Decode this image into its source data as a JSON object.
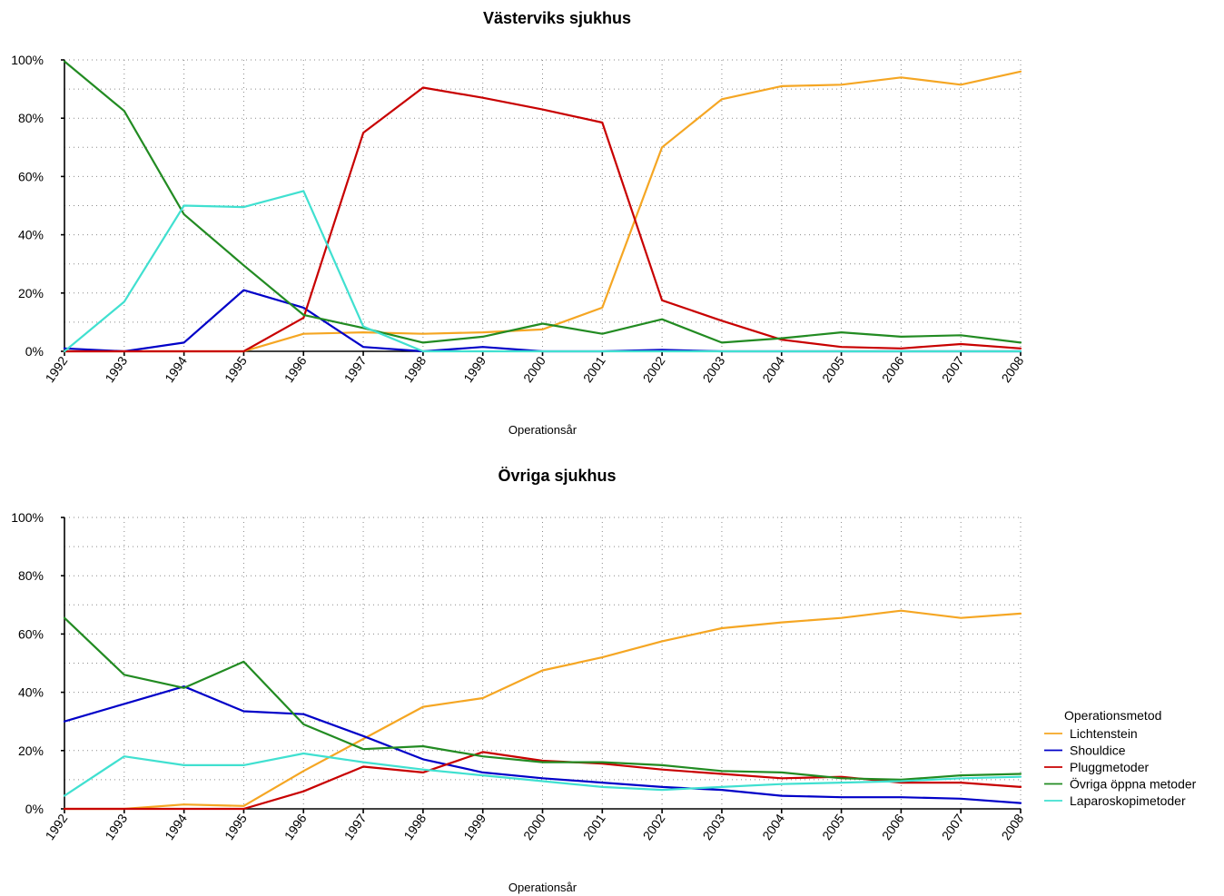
{
  "chart_data": [
    {
      "type": "line",
      "title": "Västerviks sjukhus",
      "xlabel": "Operationsår",
      "ylabel": "",
      "ylim": [
        0,
        100
      ],
      "y_ticks": [
        "0%",
        "20%",
        "40%",
        "60%",
        "80%",
        "100%"
      ],
      "grid": true,
      "x": [
        "1992",
        "1993",
        "1994",
        "1995",
        "1996",
        "1997",
        "1998",
        "1999",
        "2000",
        "2001",
        "2002",
        "2003",
        "2004",
        "2005",
        "2006",
        "2007",
        "2008"
      ],
      "series": [
        {
          "name": "Lichtenstein",
          "color": "#f5a623",
          "values": [
            0,
            0,
            0,
            0,
            6,
            6.5,
            6,
            6.5,
            7.5,
            15,
            70,
            86.5,
            91,
            91.5,
            94,
            91.5,
            96
          ]
        },
        {
          "name": "Shouldice",
          "color": "#0000c8",
          "values": [
            1,
            0,
            3,
            21,
            15,
            1.5,
            0,
            1.5,
            0,
            0,
            0.5,
            0,
            0,
            0,
            0,
            0,
            0
          ]
        },
        {
          "name": "Pluggmetoder",
          "color": "#c80000",
          "values": [
            0,
            0,
            0,
            0,
            11.5,
            75,
            90.5,
            87,
            83,
            78.5,
            17.5,
            10.5,
            4,
            1.5,
            1,
            2.5,
            1
          ]
        },
        {
          "name": "Övriga öppna metoder",
          "color": "#228b22",
          "values": [
            99.5,
            82.5,
            47,
            29.5,
            12.5,
            8,
            3,
            5,
            9.5,
            6,
            11,
            3,
            4.5,
            6.5,
            5,
            5.5,
            3
          ]
        },
        {
          "name": "Laparoskopimetoder",
          "color": "#40e0d0",
          "values": [
            0,
            17,
            50,
            49.5,
            55,
            8.5,
            0,
            0,
            0,
            0,
            0,
            0,
            0,
            0,
            0,
            0,
            0
          ]
        }
      ]
    },
    {
      "type": "line",
      "title": "Övriga sjukhus",
      "xlabel": "Operationsår",
      "ylabel": "",
      "ylim": [
        0,
        100
      ],
      "y_ticks": [
        "0%",
        "20%",
        "40%",
        "60%",
        "80%",
        "100%"
      ],
      "grid": true,
      "x": [
        "1992",
        "1993",
        "1994",
        "1995",
        "1996",
        "1997",
        "1998",
        "1999",
        "2000",
        "2001",
        "2002",
        "2003",
        "2004",
        "2005",
        "2006",
        "2007",
        "2008"
      ],
      "series": [
        {
          "name": "Lichtenstein",
          "color": "#f5a623",
          "values": [
            0,
            0,
            1.5,
            1,
            13,
            24,
            35,
            38,
            47.5,
            52,
            57.5,
            62,
            64,
            65.5,
            68,
            65.5,
            67
          ]
        },
        {
          "name": "Shouldice",
          "color": "#0000c8",
          "values": [
            30,
            36,
            42,
            33.5,
            32.5,
            25,
            17,
            12.5,
            10.5,
            9,
            7.5,
            6.5,
            4.5,
            4,
            4,
            3.5,
            2
          ]
        },
        {
          "name": "Pluggmetoder",
          "color": "#c80000",
          "values": [
            0,
            0,
            0,
            0,
            6,
            14.5,
            12.5,
            19.5,
            16.5,
            15.5,
            13.5,
            12,
            10.5,
            11,
            9,
            9,
            7.5
          ]
        },
        {
          "name": "Övriga öppna metoder",
          "color": "#228b22",
          "values": [
            65.5,
            46,
            41.5,
            50.5,
            29,
            20.5,
            21.5,
            18,
            16,
            16,
            15,
            13,
            12.5,
            10.5,
            10,
            11.5,
            12
          ]
        },
        {
          "name": "Laparoskopimetoder",
          "color": "#40e0d0",
          "values": [
            4.5,
            18,
            15,
            15,
            19,
            16,
            13.5,
            11.5,
            9.5,
            7.5,
            6.5,
            7.5,
            8.5,
            9,
            9.5,
            10.5,
            11
          ]
        }
      ]
    }
  ],
  "legend": {
    "title": "Operationsmetod",
    "placement": "right",
    "items": [
      {
        "label": "Lichtenstein",
        "color": "#f5a623"
      },
      {
        "label": "Shouldice",
        "color": "#0000c8"
      },
      {
        "label": "Pluggmetoder",
        "color": "#c80000"
      },
      {
        "label": "Övriga öppna metoder",
        "color": "#228b22"
      },
      {
        "label": "Laparoskopimetoder",
        "color": "#40e0d0"
      }
    ]
  }
}
